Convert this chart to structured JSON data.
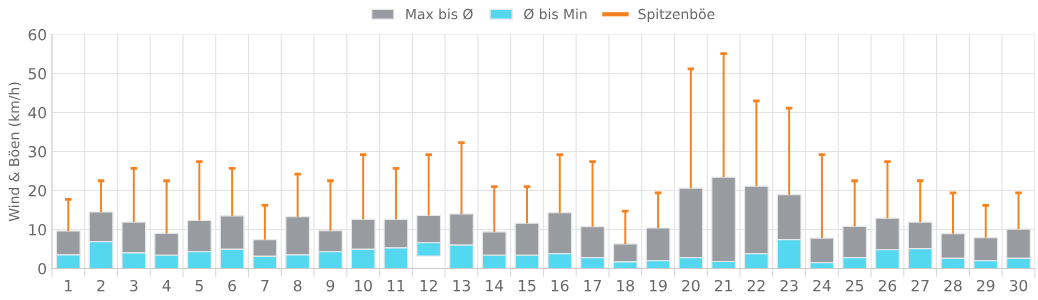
{
  "chart_data": {
    "type": "bar",
    "ylabel": "Wind & Böen (km/h)",
    "categories": [
      "1",
      "2",
      "3",
      "4",
      "5",
      "6",
      "7",
      "8",
      "9",
      "10",
      "11",
      "12",
      "13",
      "14",
      "15",
      "16",
      "17",
      "18",
      "19",
      "20",
      "21",
      "22",
      "23",
      "24",
      "25",
      "26",
      "27",
      "28",
      "29",
      "30"
    ],
    "series": [
      {
        "name": "Max bis Ø",
        "color": "#989ca1",
        "base": [
          3.5,
          6.9,
          4.0,
          3.4,
          4.3,
          4.9,
          3.1,
          3.5,
          4.3,
          4.9,
          5.3,
          6.6,
          6.0,
          3.4,
          3.4,
          3.8,
          2.8,
          1.7,
          2.0,
          2.8,
          1.8,
          3.8,
          7.4,
          1.5,
          2.8,
          4.8,
          5.1,
          2.6,
          2.0,
          2.6
        ],
        "values": [
          6.1,
          7.6,
          7.9,
          5.6,
          8.0,
          8.6,
          4.3,
          9.8,
          5.4,
          7.7,
          7.3,
          7.0,
          8.0,
          6.0,
          8.2,
          10.5,
          7.9,
          4.6,
          8.4,
          17.8,
          21.6,
          17.3,
          11.5,
          6.3,
          8.0,
          8.1,
          6.8,
          6.3,
          5.9,
          7.5
        ]
      },
      {
        "name": "Ø bis Min",
        "color": "#54d8f0",
        "base": [
          0,
          0,
          0,
          0,
          0,
          0,
          0,
          0,
          0,
          0,
          0,
          3.2,
          0,
          0,
          0,
          0,
          0,
          0,
          0,
          0,
          0,
          0,
          0,
          0,
          0,
          0,
          0,
          0,
          0,
          0
        ],
        "values": [
          3.5,
          6.9,
          4.0,
          3.4,
          4.3,
          4.9,
          3.1,
          3.5,
          4.3,
          4.9,
          5.3,
          3.4,
          6.0,
          3.4,
          3.4,
          3.8,
          2.8,
          1.7,
          2.0,
          2.8,
          1.8,
          3.8,
          7.4,
          1.5,
          2.8,
          4.8,
          5.1,
          2.6,
          2.0,
          2.6
        ]
      },
      {
        "name": "Spitzenböe",
        "type": "bar",
        "color": "#f5821f",
        "base": [
          9.6,
          14.5,
          11.9,
          9.0,
          12.3,
          13.5,
          7.4,
          13.3,
          9.7,
          12.6,
          12.6,
          13.6,
          14.0,
          9.4,
          11.6,
          14.3,
          10.7,
          6.3,
          10.4,
          20.6,
          23.4,
          21.1,
          18.9,
          7.8,
          10.8,
          12.9,
          11.9,
          8.9,
          7.9,
          10.1
        ],
        "values": [
          8.1,
          8.0,
          13.8,
          13.5,
          15.1,
          12.2,
          8.8,
          10.9,
          12.8,
          16.6,
          13.1,
          15.6,
          18.3,
          11.6,
          9.4,
          14.9,
          16.7,
          8.4,
          9.0,
          30.6,
          31.7,
          21.9,
          22.2,
          21.4,
          11.7,
          14.5,
          10.6,
          10.5,
          8.3,
          9.3
        ]
      }
    ],
    "ylim": [
      0,
      60
    ],
    "yticks": [
      0,
      10,
      20,
      30,
      40,
      50,
      60
    ],
    "grid": true,
    "legend": "top"
  }
}
